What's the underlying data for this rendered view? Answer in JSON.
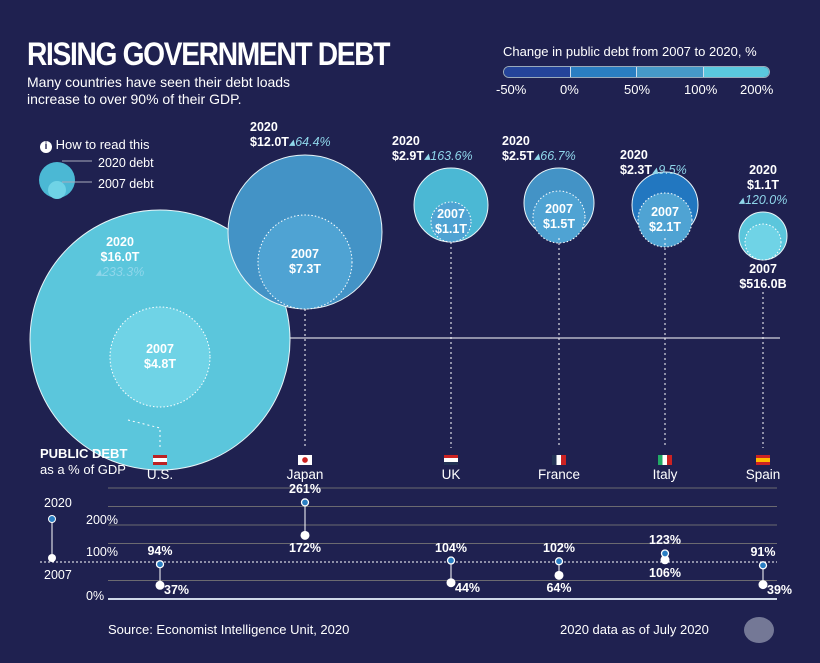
{
  "header": {
    "title": "RISING GOVERNMENT DEBT",
    "subtitle": "Many countries have seen their debt loads increase to over 90% of their GDP."
  },
  "legend": {
    "title": "Change in public debt from 2007 to 2020, %",
    "ticks": [
      "-50%",
      "0%",
      "50%",
      "100%",
      "200%"
    ],
    "colors": [
      "#24449a",
      "#2a7ec2",
      "#4699c8",
      "#5ac8de"
    ]
  },
  "howto": {
    "label": "How to read this",
    "outer": "2020 debt",
    "inner": "2007 debt",
    "icon": "info-icon"
  },
  "gdp_panel": {
    "title": "PUBLIC DEBT",
    "subtitle": "as a % of GDP",
    "key_2020": "2020",
    "key_2007": "2007",
    "axis_ticks": [
      "200%",
      "100%",
      "0%"
    ]
  },
  "chart_data": [
    {
      "type": "bubble",
      "series": [
        "2020",
        "2007"
      ],
      "countries": [
        {
          "name": "U.S.",
          "flag": "us",
          "y2020": "2020",
          "debt2020": "$16.0T",
          "change": "233.3%",
          "y2007": "2007",
          "debt2007": "$4.8T",
          "color": "#5bc6dc"
        },
        {
          "name": "Japan",
          "flag": "jp",
          "y2020": "2020",
          "debt2020": "$12.0T",
          "change": "64.4%",
          "y2007": "2007",
          "debt2007": "$7.3T",
          "color": "#4393c6"
        },
        {
          "name": "UK",
          "flag": "uk",
          "y2020": "2020",
          "debt2020": "$2.9T",
          "change": "163.6%",
          "y2007": "2007",
          "debt2007": "$1.1T",
          "color": "#4bb8d4"
        },
        {
          "name": "France",
          "flag": "fr",
          "y2020": "2020",
          "debt2020": "$2.5T",
          "change": "66.7%",
          "y2007": "2007",
          "debt2007": "$1.5T",
          "color": "#4393c6"
        },
        {
          "name": "Italy",
          "flag": "it",
          "y2020": "2020",
          "debt2020": "$2.3T",
          "change": "9.5%",
          "y2007": "2007",
          "debt2007": "$2.1T",
          "color": "#2277c0"
        },
        {
          "name": "Spain",
          "flag": "es",
          "y2020": "2020",
          "debt2020": "$1.1T",
          "change": "120.0%",
          "y2007": "2007",
          "debt2007": "$516.0B",
          "color": "#5bc6dc"
        }
      ]
    },
    {
      "type": "dumbbell",
      "ylim": [
        0,
        300
      ],
      "yticks": [
        "0%",
        "100%",
        "200%"
      ],
      "reference_line": 100,
      "countries": [
        "U.S.",
        "Japan",
        "UK",
        "France",
        "Italy",
        "Spain"
      ],
      "gdp2020": [
        94,
        261,
        104,
        102,
        123,
        91
      ],
      "gdp2007": [
        37,
        172,
        44,
        64,
        106,
        39
      ],
      "labels2020": [
        "94%",
        "261%",
        "104%",
        "102%",
        "123%",
        "91%"
      ],
      "labels2007": [
        "37%",
        "172%",
        "44%",
        "64%",
        "106%",
        "39%"
      ]
    }
  ],
  "footer": {
    "source": "Source: Economist Intelligence Unit, 2020",
    "note": "2020 data as of July 2020"
  }
}
